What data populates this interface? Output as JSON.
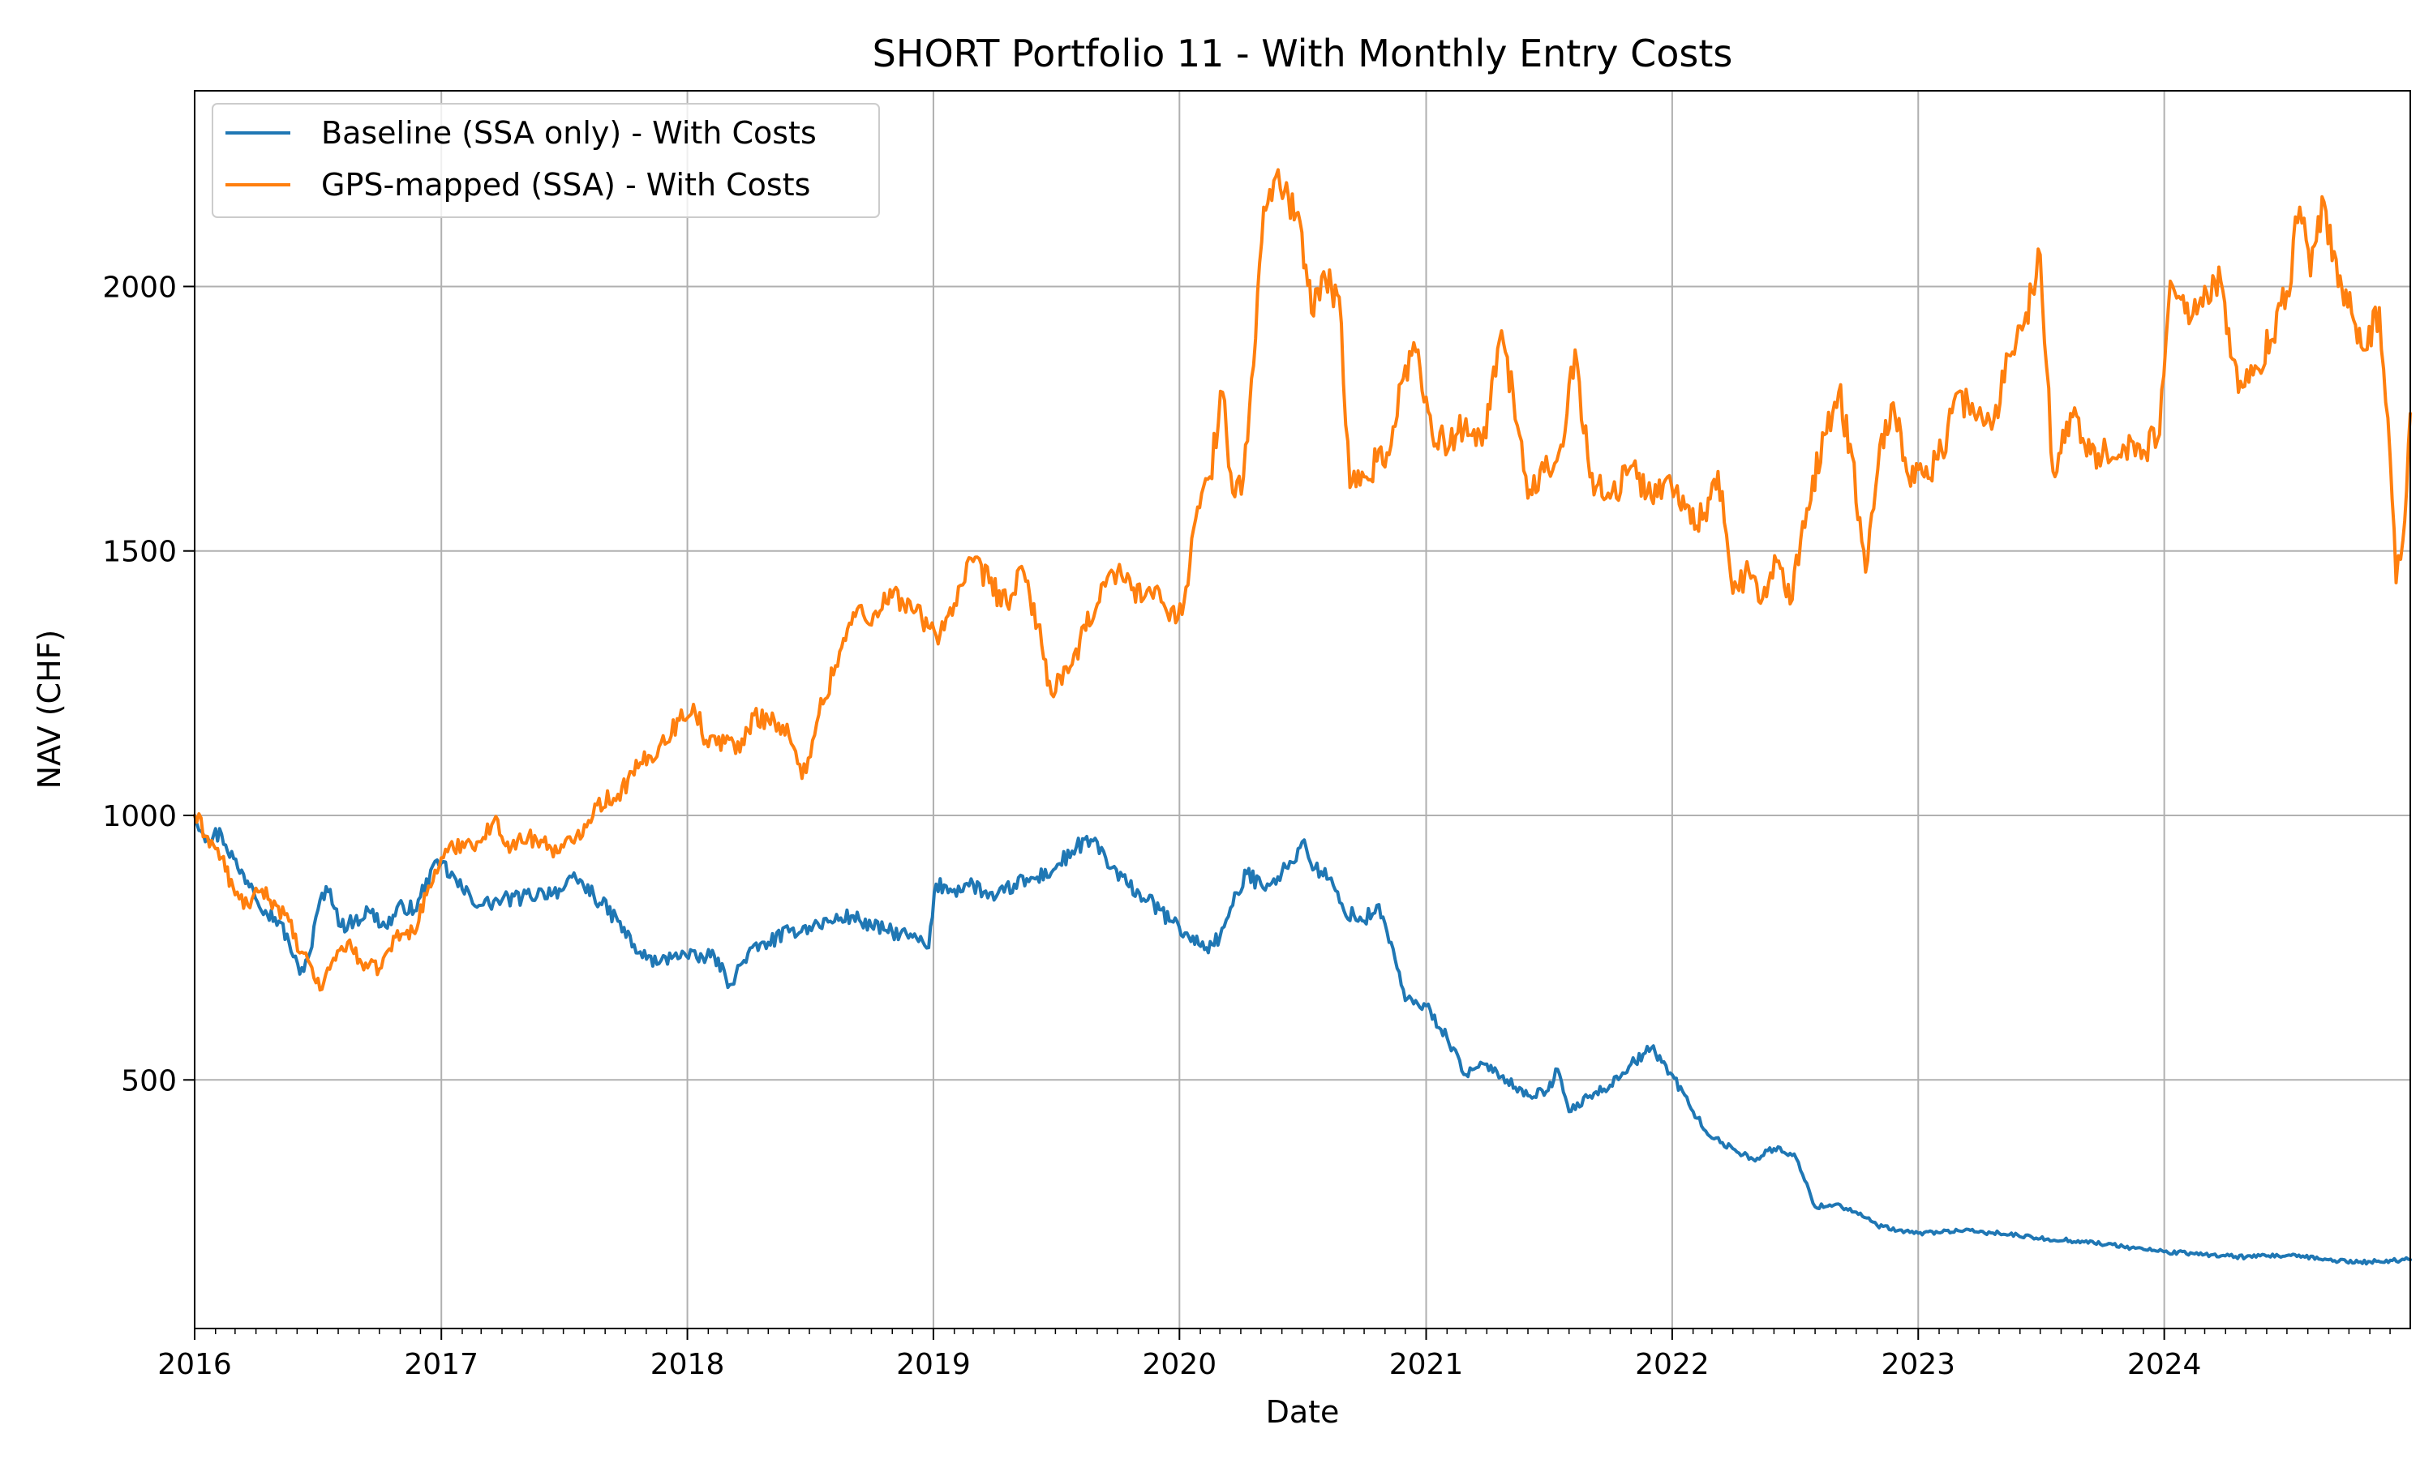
{
  "chart_data": {
    "type": "line",
    "title": "SHORT Portfolio 11 - With Monthly Entry Costs",
    "xlabel": "Date",
    "ylabel": "NAV (CHF)",
    "xlim": [
      "2016-01-01",
      "2024-12-31"
    ],
    "ylim": [
      30,
      2370
    ],
    "x_ticks": [
      "2016",
      "2017",
      "2018",
      "2019",
      "2020",
      "2021",
      "2022",
      "2023",
      "2024"
    ],
    "y_ticks": [
      500,
      1000,
      1500,
      2000
    ],
    "grid": true,
    "legend_position": "top-left",
    "series": [
      {
        "name": "Baseline (SSA only) - With Costs",
        "color": "#1f77b4",
        "points": [
          [
            "2016-01-01",
            1000
          ],
          [
            "2016-01-20",
            960
          ],
          [
            "2016-02-10",
            965
          ],
          [
            "2016-03-05",
            900
          ],
          [
            "2016-03-25",
            870
          ],
          [
            "2016-04-15",
            820
          ],
          [
            "2016-05-05",
            800
          ],
          [
            "2016-05-20",
            760
          ],
          [
            "2016-06-05",
            700
          ],
          [
            "2016-06-20",
            740
          ],
          [
            "2016-07-05",
            840
          ],
          [
            "2016-07-20",
            860
          ],
          [
            "2016-08-05",
            790
          ],
          [
            "2016-08-25",
            800
          ],
          [
            "2016-09-15",
            820
          ],
          [
            "2016-10-10",
            790
          ],
          [
            "2016-11-05",
            830
          ],
          [
            "2016-11-25",
            820
          ],
          [
            "2016-12-10",
            880
          ],
          [
            "2017-01-01",
            910
          ],
          [
            "2017-02-01",
            860
          ],
          [
            "2017-03-01",
            830
          ],
          [
            "2017-04-01",
            840
          ],
          [
            "2017-05-01",
            845
          ],
          [
            "2017-06-01",
            855
          ],
          [
            "2017-07-01",
            860
          ],
          [
            "2017-07-20",
            880
          ],
          [
            "2017-08-15",
            850
          ],
          [
            "2017-09-20",
            800
          ],
          [
            "2017-10-20",
            740
          ],
          [
            "2017-11-20",
            720
          ],
          [
            "2017-12-15",
            740
          ],
          [
            "2018-01-15",
            730
          ],
          [
            "2018-02-10",
            735
          ],
          [
            "2018-03-05",
            680
          ],
          [
            "2018-04-01",
            740
          ],
          [
            "2018-05-01",
            760
          ],
          [
            "2018-06-01",
            780
          ],
          [
            "2018-07-01",
            790
          ],
          [
            "2018-08-01",
            800
          ],
          [
            "2018-09-01",
            810
          ],
          [
            "2018-10-01",
            790
          ],
          [
            "2018-11-01",
            780
          ],
          [
            "2018-12-01",
            770
          ],
          [
            "2018-12-25",
            750
          ],
          [
            "2019-01-05",
            870
          ],
          [
            "2019-02-01",
            860
          ],
          [
            "2019-03-01",
            870
          ],
          [
            "2019-04-01",
            840
          ],
          [
            "2019-05-01",
            870
          ],
          [
            "2019-06-01",
            880
          ],
          [
            "2019-07-01",
            900
          ],
          [
            "2019-08-01",
            940
          ],
          [
            "2019-09-01",
            950
          ],
          [
            "2019-09-20",
            900
          ],
          [
            "2019-10-15",
            870
          ],
          [
            "2019-11-15",
            840
          ],
          [
            "2019-12-20",
            800
          ],
          [
            "2020-01-15",
            770
          ],
          [
            "2020-02-10",
            750
          ],
          [
            "2020-03-01",
            770
          ],
          [
            "2020-03-20",
            830
          ],
          [
            "2020-04-10",
            890
          ],
          [
            "2020-05-01",
            870
          ],
          [
            "2020-05-20",
            880
          ],
          [
            "2020-06-10",
            900
          ],
          [
            "2020-07-01",
            950
          ],
          [
            "2020-07-20",
            900
          ],
          [
            "2020-08-10",
            880
          ],
          [
            "2020-09-01",
            820
          ],
          [
            "2020-10-01",
            800
          ],
          [
            "2020-10-20",
            830
          ],
          [
            "2020-11-10",
            760
          ],
          [
            "2020-12-01",
            650
          ],
          [
            "2021-01-01",
            640
          ],
          [
            "2021-02-01",
            580
          ],
          [
            "2021-03-01",
            510
          ],
          [
            "2021-04-01",
            530
          ],
          [
            "2021-05-01",
            500
          ],
          [
            "2021-06-01",
            470
          ],
          [
            "2021-07-01",
            480
          ],
          [
            "2021-07-15",
            520
          ],
          [
            "2021-08-01",
            440
          ],
          [
            "2021-09-01",
            470
          ],
          [
            "2021-10-01",
            490
          ],
          [
            "2021-11-01",
            530
          ],
          [
            "2021-12-01",
            560
          ],
          [
            "2022-01-01",
            510
          ],
          [
            "2022-02-01",
            440
          ],
          [
            "2022-03-01",
            390
          ],
          [
            "2022-04-01",
            370
          ],
          [
            "2022-05-01",
            350
          ],
          [
            "2022-06-01",
            370
          ],
          [
            "2022-07-01",
            360
          ],
          [
            "2022-08-01",
            260
          ],
          [
            "2022-09-01",
            265
          ],
          [
            "2022-10-01",
            250
          ],
          [
            "2022-11-01",
            225
          ],
          [
            "2022-12-01",
            215
          ],
          [
            "2023-01-01",
            210
          ],
          [
            "2023-03-01",
            215
          ],
          [
            "2023-05-01",
            210
          ],
          [
            "2023-07-01",
            200
          ],
          [
            "2023-09-01",
            195
          ],
          [
            "2023-11-01",
            185
          ],
          [
            "2024-01-01",
            175
          ],
          [
            "2024-03-01",
            170
          ],
          [
            "2024-05-01",
            165
          ],
          [
            "2024-07-01",
            168
          ],
          [
            "2024-09-01",
            160
          ],
          [
            "2024-10-15",
            155
          ],
          [
            "2024-12-31",
            160
          ]
        ]
      },
      {
        "name": "GPS-mapped (SSA) - With Costs",
        "color": "#ff7f0e",
        "points": [
          [
            "2016-01-01",
            1000
          ],
          [
            "2016-01-20",
            960
          ],
          [
            "2016-02-10",
            920
          ],
          [
            "2016-03-01",
            850
          ],
          [
            "2016-03-20",
            830
          ],
          [
            "2016-04-10",
            860
          ],
          [
            "2016-05-01",
            830
          ],
          [
            "2016-05-20",
            800
          ],
          [
            "2016-06-05",
            740
          ],
          [
            "2016-06-20",
            720
          ],
          [
            "2016-07-05",
            670
          ],
          [
            "2016-07-25",
            730
          ],
          [
            "2016-08-15",
            760
          ],
          [
            "2016-09-05",
            720
          ],
          [
            "2016-10-01",
            710
          ],
          [
            "2016-10-25",
            770
          ],
          [
            "2016-11-20",
            780
          ],
          [
            "2016-12-10",
            850
          ],
          [
            "2017-01-01",
            920
          ],
          [
            "2017-02-01",
            950
          ],
          [
            "2017-03-01",
            950
          ],
          [
            "2017-03-20",
            990
          ],
          [
            "2017-04-15",
            940
          ],
          [
            "2017-05-10",
            960
          ],
          [
            "2017-06-01",
            950
          ],
          [
            "2017-06-25",
            930
          ],
          [
            "2017-07-20",
            960
          ],
          [
            "2017-08-20",
            1020
          ],
          [
            "2017-09-20",
            1040
          ],
          [
            "2017-10-20",
            1090
          ],
          [
            "2017-11-20",
            1130
          ],
          [
            "2017-12-20",
            1180
          ],
          [
            "2018-01-10",
            1210
          ],
          [
            "2018-02-01",
            1130
          ],
          [
            "2018-03-01",
            1150
          ],
          [
            "2018-03-20",
            1120
          ],
          [
            "2018-04-10",
            1190
          ],
          [
            "2018-05-10",
            1180
          ],
          [
            "2018-06-01",
            1150
          ],
          [
            "2018-06-20",
            1070
          ],
          [
            "2018-07-15",
            1190
          ],
          [
            "2018-08-15",
            1310
          ],
          [
            "2018-09-10",
            1390
          ],
          [
            "2018-10-01",
            1360
          ],
          [
            "2018-10-20",
            1420
          ],
          [
            "2018-11-15",
            1410
          ],
          [
            "2018-12-15",
            1370
          ],
          [
            "2019-01-05",
            1340
          ],
          [
            "2019-02-01",
            1400
          ],
          [
            "2019-03-01",
            1480
          ],
          [
            "2019-03-25",
            1440
          ],
          [
            "2019-04-20",
            1400
          ],
          [
            "2019-05-15",
            1460
          ],
          [
            "2019-06-05",
            1360
          ],
          [
            "2019-06-25",
            1230
          ],
          [
            "2019-07-20",
            1270
          ],
          [
            "2019-08-15",
            1350
          ],
          [
            "2019-09-10",
            1440
          ],
          [
            "2019-10-01",
            1460
          ],
          [
            "2019-10-25",
            1430
          ],
          [
            "2019-11-20",
            1420
          ],
          [
            "2019-12-20",
            1390
          ],
          [
            "2020-01-05",
            1380
          ],
          [
            "2020-01-25",
            1560
          ],
          [
            "2020-02-15",
            1640
          ],
          [
            "2020-03-05",
            1800
          ],
          [
            "2020-03-20",
            1610
          ],
          [
            "2020-04-05",
            1640
          ],
          [
            "2020-04-20",
            1850
          ],
          [
            "2020-05-05",
            2150
          ],
          [
            "2020-05-20",
            2200
          ],
          [
            "2020-06-05",
            2180
          ],
          [
            "2020-06-25",
            2140
          ],
          [
            "2020-07-15",
            1950
          ],
          [
            "2020-08-05",
            2010
          ],
          [
            "2020-08-25",
            1980
          ],
          [
            "2020-09-10",
            1620
          ],
          [
            "2020-10-01",
            1640
          ],
          [
            "2020-10-20",
            1670
          ],
          [
            "2020-11-10",
            1700
          ],
          [
            "2020-12-01",
            1850
          ],
          [
            "2020-12-20",
            1880
          ],
          [
            "2021-01-10",
            1720
          ],
          [
            "2021-02-05",
            1700
          ],
          [
            "2021-03-01",
            1750
          ],
          [
            "2021-03-25",
            1700
          ],
          [
            "2021-04-20",
            1900
          ],
          [
            "2021-05-10",
            1800
          ],
          [
            "2021-06-01",
            1600
          ],
          [
            "2021-06-25",
            1650
          ],
          [
            "2021-07-20",
            1700
          ],
          [
            "2021-08-10",
            1880
          ],
          [
            "2021-09-01",
            1640
          ],
          [
            "2021-10-01",
            1600
          ],
          [
            "2021-11-01",
            1660
          ],
          [
            "2021-12-01",
            1600
          ],
          [
            "2021-12-25",
            1640
          ],
          [
            "2022-01-20",
            1580
          ],
          [
            "2022-02-15",
            1560
          ],
          [
            "2022-03-10",
            1650
          ],
          [
            "2022-04-01",
            1420
          ],
          [
            "2022-04-25",
            1460
          ],
          [
            "2022-05-15",
            1410
          ],
          [
            "2022-06-05",
            1480
          ],
          [
            "2022-06-25",
            1400
          ],
          [
            "2022-07-20",
            1580
          ],
          [
            "2022-08-15",
            1720
          ],
          [
            "2022-09-05",
            1800
          ],
          [
            "2022-09-25",
            1680
          ],
          [
            "2022-10-15",
            1460
          ],
          [
            "2022-11-05",
            1700
          ],
          [
            "2022-11-25",
            1780
          ],
          [
            "2022-12-15",
            1650
          ],
          [
            "2023-01-10",
            1640
          ],
          [
            "2023-02-05",
            1690
          ],
          [
            "2023-03-01",
            1800
          ],
          [
            "2023-03-25",
            1760
          ],
          [
            "2023-04-20",
            1730
          ],
          [
            "2023-05-15",
            1870
          ],
          [
            "2023-06-10",
            1950
          ],
          [
            "2023-07-01",
            2060
          ],
          [
            "2023-07-20",
            1650
          ],
          [
            "2023-08-15",
            1760
          ],
          [
            "2023-09-05",
            1700
          ],
          [
            "2023-10-01",
            1680
          ],
          [
            "2023-11-01",
            1700
          ],
          [
            "2023-12-01",
            1690
          ],
          [
            "2023-12-25",
            1720
          ],
          [
            "2024-01-10",
            2010
          ],
          [
            "2024-02-01",
            1950
          ],
          [
            "2024-03-01",
            2000
          ],
          [
            "2024-03-25",
            2010
          ],
          [
            "2024-04-20",
            1800
          ],
          [
            "2024-05-15",
            1850
          ],
          [
            "2024-06-10",
            1900
          ],
          [
            "2024-07-01",
            1990
          ],
          [
            "2024-07-20",
            2150
          ],
          [
            "2024-08-05",
            2020
          ],
          [
            "2024-08-25",
            2160
          ],
          [
            "2024-09-15",
            2000
          ],
          [
            "2024-10-05",
            1950
          ],
          [
            "2024-10-25",
            1880
          ],
          [
            "2024-11-15",
            1960
          ],
          [
            "2024-12-01",
            1680
          ],
          [
            "2024-12-10",
            1440
          ],
          [
            "2024-12-20",
            1520
          ],
          [
            "2024-12-31",
            1760
          ]
        ]
      }
    ]
  }
}
